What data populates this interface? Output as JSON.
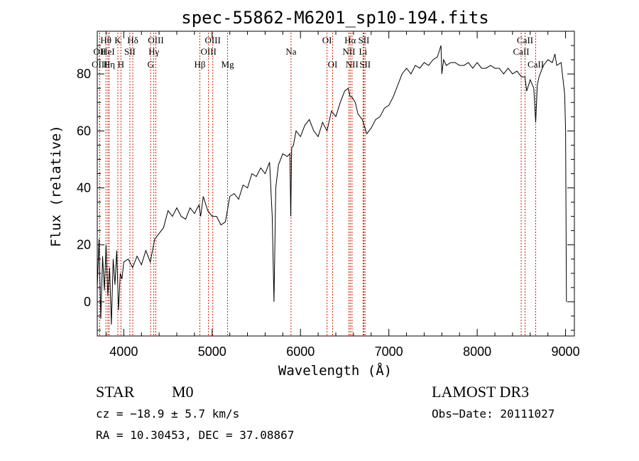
{
  "chart_data": {
    "type": "line",
    "title": "spec-55862-M6201_sp10-194.fits",
    "xlabel": "Wavelength (Å)",
    "ylabel": "Flux (relative)",
    "xlim": [
      3700,
      9100
    ],
    "ylim": [
      -12,
      95
    ],
    "xticks": [
      4000,
      5000,
      6000,
      7000,
      8000,
      9000
    ],
    "yticks": [
      0,
      20,
      40,
      60,
      80
    ],
    "grid": false,
    "series": [
      {
        "line_color": "#000000",
        "x": [
          3700,
          3720,
          3740,
          3760,
          3780,
          3800,
          3820,
          3840,
          3860,
          3880,
          3900,
          3920,
          3940,
          3960,
          3980,
          4000,
          4050,
          4100,
          4150,
          4200,
          4250,
          4300,
          4350,
          4400,
          4450,
          4500,
          4550,
          4600,
          4650,
          4700,
          4750,
          4800,
          4850,
          4870,
          4900,
          4950,
          5000,
          5050,
          5100,
          5150,
          5200,
          5250,
          5300,
          5350,
          5400,
          5450,
          5500,
          5550,
          5600,
          5650,
          5680,
          5700,
          5720,
          5750,
          5800,
          5850,
          5880,
          5890,
          5900,
          5920,
          5950,
          6000,
          6050,
          6100,
          6150,
          6200,
          6250,
          6300,
          6350,
          6400,
          6450,
          6500,
          6540,
          6563,
          6580,
          6620,
          6650,
          6700,
          6750,
          6800,
          6850,
          6900,
          6950,
          7000,
          7050,
          7100,
          7150,
          7200,
          7250,
          7300,
          7350,
          7400,
          7450,
          7500,
          7550,
          7590,
          7600,
          7620,
          7650,
          7700,
          7750,
          7800,
          7850,
          7900,
          7950,
          8000,
          8050,
          8100,
          8150,
          8200,
          8250,
          8300,
          8350,
          8400,
          8450,
          8500,
          8540,
          8560,
          8600,
          8640,
          8662,
          8680,
          8700,
          8750,
          8800,
          8850,
          8880,
          8900,
          8950,
          8990,
          9000,
          9010
        ],
        "y": [
          5,
          22,
          -6,
          16,
          4,
          20,
          2,
          12,
          -8,
          15,
          6,
          18,
          -3,
          10,
          8,
          14,
          15,
          12,
          16,
          13,
          18,
          14,
          22,
          24,
          26,
          32,
          30,
          33,
          30,
          29,
          33,
          31,
          34,
          30,
          37,
          32,
          30,
          30,
          27,
          28,
          37,
          38,
          36,
          41,
          40,
          45,
          44,
          47,
          45,
          49,
          30,
          0,
          40,
          48,
          52,
          51,
          52,
          30,
          54,
          55,
          60,
          58,
          62,
          64,
          60,
          58,
          63,
          60,
          67,
          65,
          70,
          74,
          75,
          72,
          72,
          70,
          66,
          64,
          59,
          61,
          64,
          65,
          68,
          69,
          72,
          76,
          80,
          82,
          80,
          83,
          82,
          84,
          83,
          85,
          86,
          90,
          80,
          85,
          83,
          84,
          84,
          83,
          83,
          84,
          82,
          84,
          82,
          82,
          83,
          82,
          82,
          80,
          82,
          80,
          81,
          79,
          79,
          74,
          78,
          75,
          63,
          76,
          79,
          83,
          85,
          84,
          87,
          83,
          84,
          73,
          60,
          0
        ]
      }
    ],
    "spectral_lines": [
      {
        "label": "Hθ",
        "x": 3798,
        "row": 1
      },
      {
        "label": "OII",
        "x": 3727,
        "row": 2
      },
      {
        "label": "OIII",
        "x": 3727,
        "row": 3
      },
      {
        "label": "HeI",
        "x": 3820,
        "row": 2
      },
      {
        "label": "Hη",
        "x": 3835,
        "row": 3
      },
      {
        "label": "K",
        "x": 3933,
        "row": 1
      },
      {
        "label": "SII",
        "x": 4069,
        "row": 2
      },
      {
        "label": "H",
        "x": 3968,
        "row": 3
      },
      {
        "label": "Hδ",
        "x": 4102,
        "row": 1
      },
      {
        "label": "OIII",
        "x": 4363,
        "row": 1
      },
      {
        "label": "Hγ",
        "x": 4340,
        "row": 2
      },
      {
        "label": "G",
        "x": 4304,
        "row": 3
      },
      {
        "label": "Hβ",
        "x": 4861,
        "row": 3
      },
      {
        "label": "OIII",
        "x": 5007,
        "row": 1
      },
      {
        "label": "OIII",
        "x": 4959,
        "row": 2
      },
      {
        "label": "Mg",
        "x": 5175,
        "row": 3
      },
      {
        "label": "Na",
        "x": 5893,
        "row": 2
      },
      {
        "label": "OI",
        "x": 6300,
        "row": 1
      },
      {
        "label": "OI",
        "x": 6364,
        "row": 3
      },
      {
        "label": "Hα",
        "x": 6563,
        "row": 1
      },
      {
        "label": "NII",
        "x": 6548,
        "row": 2
      },
      {
        "label": "NII",
        "x": 6583,
        "row": 3
      },
      {
        "label": "SII",
        "x": 6717,
        "row": 1
      },
      {
        "label": "Li",
        "x": 6708,
        "row": 2
      },
      {
        "label": "SII",
        "x": 6731,
        "row": 3
      },
      {
        "label": "CaII",
        "x": 8542,
        "row": 1
      },
      {
        "label": "CaII",
        "x": 8498,
        "row": 2
      },
      {
        "label": "CaII",
        "x": 8662,
        "row": 3
      }
    ],
    "spectral_line_color": "#cc2200",
    "info": {
      "object_class": "STAR",
      "subclass": "M0",
      "survey": "LAMOST DR3",
      "cz": "cz = −18.9 ± 5.7 km/s",
      "obs_date": "Obs−Date: 20111027",
      "coords": "RA =  10.30453, DEC =  37.08867"
    }
  }
}
